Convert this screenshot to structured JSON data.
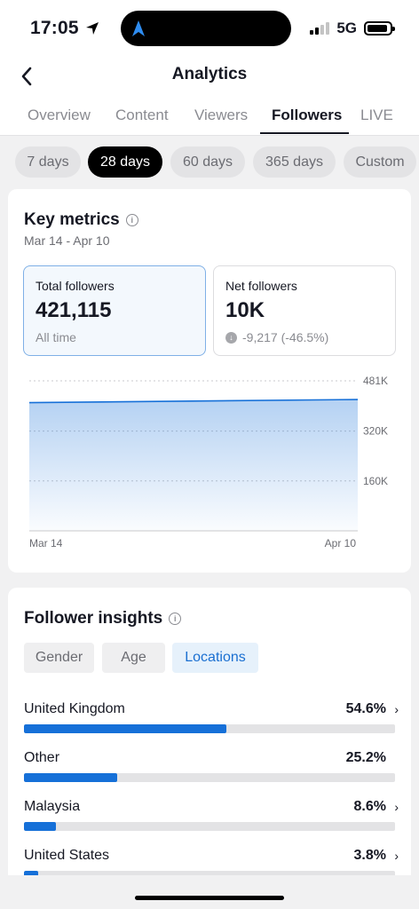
{
  "status_bar": {
    "time": "17:05",
    "network": "5G"
  },
  "header": {
    "title": "Analytics"
  },
  "tabs": [
    {
      "label": "Overview",
      "active": false
    },
    {
      "label": "Content",
      "active": false
    },
    {
      "label": "Viewers",
      "active": false
    },
    {
      "label": "Followers",
      "active": true
    },
    {
      "label": "LIVE",
      "active": false
    }
  ],
  "ranges": [
    {
      "label": "7 days",
      "active": false
    },
    {
      "label": "28 days",
      "active": true
    },
    {
      "label": "60 days",
      "active": false
    },
    {
      "label": "365 days",
      "active": false
    },
    {
      "label": "Custom",
      "active": false
    }
  ],
  "key_metrics": {
    "title": "Key metrics",
    "date_range": "Mar 14 - Apr 10",
    "total_followers": {
      "label": "Total followers",
      "value": "421,115",
      "sub": "All time"
    },
    "net_followers": {
      "label": "Net followers",
      "value": "10K",
      "sub": "-9,217 (-46.5%)"
    }
  },
  "chart_data": {
    "type": "area",
    "x": [
      "Mar 14",
      "Apr 10"
    ],
    "x_tick_labels": [
      "Mar 14",
      "Apr 10"
    ],
    "y_tick_labels": [
      "481K",
      "320K",
      "160K"
    ],
    "y_ticks": [
      481000,
      320000,
      160000
    ],
    "ylim": [
      0,
      481000
    ],
    "series": [
      {
        "values": [
          411000,
          421115
        ]
      }
    ],
    "grid": true,
    "y_axis_side": "right",
    "color": "#1670d8"
  },
  "insights": {
    "title": "Follower insights",
    "segments": [
      {
        "label": "Gender",
        "active": false
      },
      {
        "label": "Age",
        "active": false
      },
      {
        "label": "Locations",
        "active": true
      }
    ],
    "locations": [
      {
        "name": "United Kingdom",
        "percent": "54.6%",
        "fraction": 0.546,
        "has_chevron": true
      },
      {
        "name": "Other",
        "percent": "25.2%",
        "fraction": 0.252,
        "has_chevron": false
      },
      {
        "name": "Malaysia",
        "percent": "8.6%",
        "fraction": 0.086,
        "has_chevron": true
      },
      {
        "name": "United States",
        "percent": "3.8%",
        "fraction": 0.038,
        "has_chevron": true
      }
    ]
  },
  "icons": {
    "back": "chevron-left-icon",
    "location": "location-arrow-icon",
    "info": "info-icon",
    "down": "arrow-down-circle-icon",
    "chevron": "chevron-right-icon"
  },
  "colors": {
    "accent": "#1670d8",
    "selected_border": "#7fb0e6"
  }
}
